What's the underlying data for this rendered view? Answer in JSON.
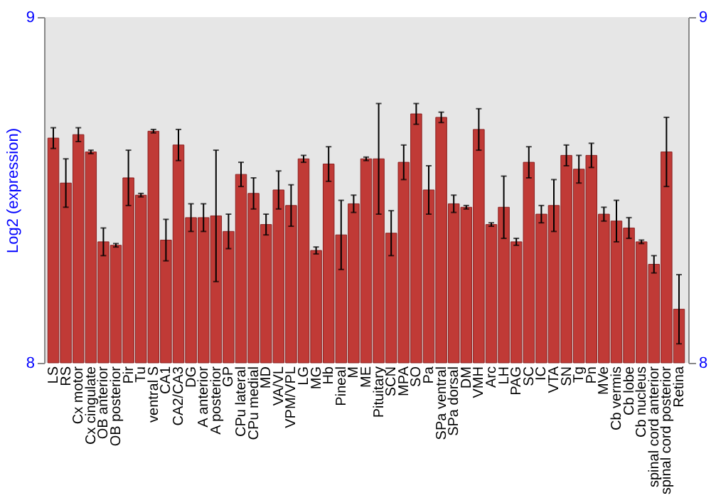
{
  "chart_data": {
    "type": "bar",
    "ylabel": "Log2 (expression)",
    "categories": [
      "LS",
      "RS",
      "Cx motor",
      "Cx cingulate",
      "OB anterior",
      "OB posterior",
      "Pir",
      "Tu",
      "ventral S",
      "CA1",
      "CA2/CA3",
      "DG",
      "A anterior",
      "A posterior",
      "GP",
      "CPu lateral",
      "CPu medial",
      "MD",
      "VA/VL",
      "VPM/VPL",
      "LG",
      "MG",
      "Hb",
      "Pineal",
      "M",
      "ME",
      "Pituitary",
      "SCN",
      "MPA",
      "SO",
      "Pa",
      "SPa ventral",
      "SPa dorsal",
      "DM",
      "VMH",
      "Arc",
      "LH",
      "PAG",
      "SC",
      "IC",
      "VTA",
      "SN",
      "Tg",
      "Pn",
      "MVe",
      "Cb vermis",
      "Cb lobe",
      "Cb nucleus",
      "spinal cord anterior",
      "spinal cord posterior",
      "Retina"
    ],
    "series": [
      {
        "color": "#c03a36",
        "values": [
          8.65,
          8.52,
          8.66,
          8.61,
          8.35,
          8.34,
          8.535,
          8.485,
          8.67,
          8.355,
          8.63,
          8.42,
          8.42,
          8.425,
          8.38,
          8.545,
          8.49,
          8.4,
          8.5,
          8.455,
          8.59,
          8.325,
          8.575,
          8.37,
          8.46,
          8.59,
          8.59,
          8.375,
          8.58,
          8.72,
          8.5,
          8.71,
          8.46,
          8.45,
          8.675,
          8.4,
          8.45,
          8.35,
          8.58,
          8.43,
          8.455,
          8.6,
          8.56,
          8.6,
          8.43,
          8.41,
          8.39,
          8.35,
          8.285,
          8.61,
          8.155
        ],
        "errors": [
          0.03,
          0.07,
          0.02,
          0.005,
          0.04,
          0.005,
          0.08,
          0.005,
          0.005,
          0.06,
          0.045,
          0.04,
          0.04,
          0.19,
          0.05,
          0.035,
          0.045,
          0.03,
          0.055,
          0.06,
          0.01,
          0.01,
          0.05,
          0.1,
          0.025,
          0.005,
          0.16,
          0.065,
          0.05,
          0.03,
          0.07,
          0.015,
          0.025,
          0.005,
          0.06,
          0.005,
          0.09,
          0.01,
          0.045,
          0.025,
          0.075,
          0.03,
          0.04,
          0.035,
          0.02,
          0.06,
          0.03,
          0.005,
          0.025,
          0.1,
          0.1
        ]
      }
    ],
    "ylim": [
      8,
      9
    ],
    "yticks": [
      8,
      9
    ],
    "y2lim": [
      8,
      9
    ],
    "y2ticks": [
      8,
      9
    ],
    "grid": false,
    "legend": false
  }
}
